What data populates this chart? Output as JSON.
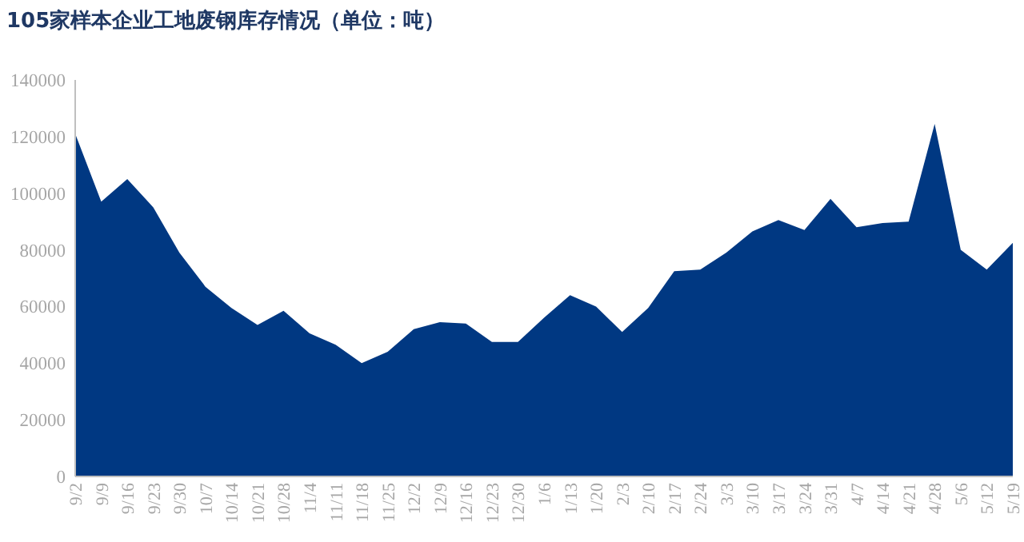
{
  "chart_data": {
    "type": "area",
    "title": "105家样本企业工地废钢库存情况（单位：吨）",
    "categories": [
      "9/2",
      "9/9",
      "9/16",
      "9/23",
      "9/30",
      "10/7",
      "10/14",
      "10/21",
      "10/28",
      "11/4",
      "11/11",
      "11/18",
      "11/25",
      "12/2",
      "12/9",
      "12/16",
      "12/23",
      "12/30",
      "1/6",
      "1/13",
      "1/20",
      "2/3",
      "2/10",
      "2/17",
      "2/24",
      "3/3",
      "3/10",
      "3/17",
      "3/24",
      "3/31",
      "4/7",
      "4/14",
      "4/21",
      "4/28",
      "5/6",
      "5/12",
      "5/19"
    ],
    "series": [
      {
        "color": "#003882",
        "values": [
          121000,
          97000,
          105000,
          95000,
          79000,
          67000,
          59500,
          53500,
          58500,
          50500,
          46500,
          40000,
          44000,
          52000,
          54500,
          54000,
          47500,
          47500,
          56000,
          64000,
          60000,
          51000,
          59500,
          72500,
          73000,
          79000,
          86500,
          90500,
          87000,
          98000,
          88000,
          89500,
          90000,
          124500,
          80000,
          73000,
          82500
        ]
      }
    ],
    "ylim": [
      0,
      140000
    ],
    "yticks": [
      0,
      20000,
      40000,
      60000,
      80000,
      100000,
      120000,
      140000
    ],
    "grid": false
  }
}
